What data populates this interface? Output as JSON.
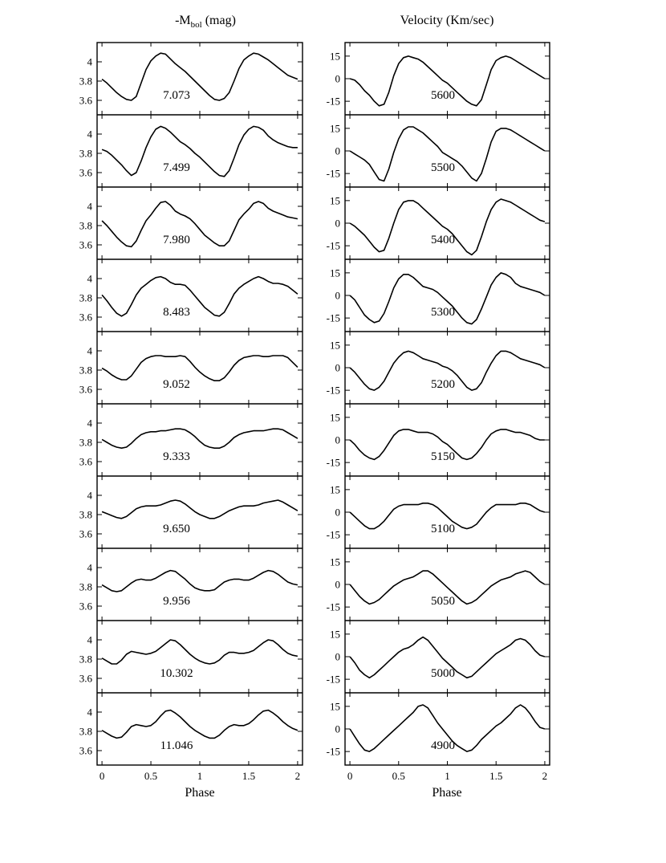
{
  "chart_data": {
    "type": "line",
    "layout": "two columns of ten stacked panels sharing the phase axis",
    "x_values": [
      0.0,
      0.05,
      0.1,
      0.15,
      0.2,
      0.25,
      0.3,
      0.35,
      0.4,
      0.45,
      0.5,
      0.55,
      0.6,
      0.65,
      0.7,
      0.75,
      0.8,
      0.85,
      0.9,
      0.95,
      1.0,
      1.05,
      1.1,
      1.15,
      1.2,
      1.25,
      1.3,
      1.35,
      1.4,
      1.45,
      1.5,
      1.55,
      1.6,
      1.65,
      1.7,
      1.75,
      1.8,
      1.85,
      1.9,
      1.95,
      2.0
    ],
    "columns": [
      {
        "title_main": "-M",
        "title_sub": "bol",
        "title_unit": " (mag)",
        "ylim": [
          3.45,
          4.2
        ],
        "yticks": [
          3.6,
          3.8,
          4.0
        ],
        "ytick_labels": [
          "3.6",
          "3.8",
          "4"
        ],
        "series": [
          {
            "label": "7.073",
            "values": [
              3.82,
              3.78,
              3.73,
              3.68,
              3.64,
              3.61,
              3.6,
              3.64,
              3.78,
              3.92,
              4.01,
              4.06,
              4.09,
              4.08,
              4.03,
              3.98,
              3.94,
              3.9,
              3.85,
              3.8,
              3.75,
              3.7,
              3.65,
              3.61,
              3.6,
              3.62,
              3.68,
              3.8,
              3.93,
              4.02,
              4.06,
              4.09,
              4.08,
              4.05,
              4.02,
              3.98,
              3.94,
              3.9,
              3.86,
              3.84,
              3.82
            ]
          },
          {
            "label": "7.499",
            "values": [
              3.84,
              3.82,
              3.78,
              3.73,
              3.68,
              3.62,
              3.57,
              3.6,
              3.72,
              3.86,
              3.97,
              4.05,
              4.08,
              4.06,
              4.02,
              3.97,
              3.92,
              3.89,
              3.85,
              3.8,
              3.76,
              3.71,
              3.66,
              3.61,
              3.57,
              3.56,
              3.62,
              3.75,
              3.89,
              3.99,
              4.05,
              4.08,
              4.07,
              4.04,
              3.98,
              3.94,
              3.91,
              3.89,
              3.87,
              3.86,
              3.86
            ]
          },
          {
            "label": "7.980",
            "values": [
              3.85,
              3.8,
              3.74,
              3.68,
              3.63,
              3.59,
              3.58,
              3.64,
              3.75,
              3.85,
              3.91,
              3.98,
              4.04,
              4.05,
              4.01,
              3.95,
              3.92,
              3.9,
              3.87,
              3.82,
              3.76,
              3.7,
              3.66,
              3.62,
              3.59,
              3.59,
              3.64,
              3.75,
              3.86,
              3.92,
              3.97,
              4.03,
              4.05,
              4.03,
              3.98,
              3.95,
              3.93,
              3.91,
              3.89,
              3.88,
              3.87
            ]
          },
          {
            "label": "8.483",
            "values": [
              3.83,
              3.77,
              3.7,
              3.64,
              3.61,
              3.64,
              3.73,
              3.83,
              3.9,
              3.94,
              3.98,
              4.01,
              4.02,
              4.0,
              3.96,
              3.94,
              3.94,
              3.93,
              3.88,
              3.82,
              3.76,
              3.7,
              3.66,
              3.62,
              3.61,
              3.65,
              3.74,
              3.84,
              3.9,
              3.94,
              3.97,
              4.0,
              4.02,
              4.0,
              3.97,
              3.95,
              3.95,
              3.94,
              3.92,
              3.88,
              3.84
            ]
          },
          {
            "label": "9.052",
            "values": [
              3.82,
              3.79,
              3.75,
              3.72,
              3.7,
              3.7,
              3.74,
              3.81,
              3.88,
              3.92,
              3.94,
              3.95,
              3.95,
              3.94,
              3.94,
              3.94,
              3.95,
              3.94,
              3.89,
              3.83,
              3.78,
              3.74,
              3.71,
              3.69,
              3.69,
              3.72,
              3.78,
              3.85,
              3.9,
              3.93,
              3.94,
              3.95,
              3.95,
              3.94,
              3.94,
              3.95,
              3.95,
              3.95,
              3.93,
              3.88,
              3.83
            ]
          },
          {
            "label": "9.333",
            "values": [
              3.83,
              3.8,
              3.77,
              3.75,
              3.74,
              3.75,
              3.79,
              3.84,
              3.88,
              3.9,
              3.91,
              3.91,
              3.92,
              3.92,
              3.93,
              3.94,
              3.94,
              3.93,
              3.9,
              3.86,
              3.81,
              3.77,
              3.75,
              3.74,
              3.74,
              3.76,
              3.8,
              3.85,
              3.88,
              3.9,
              3.91,
              3.92,
              3.92,
              3.92,
              3.93,
              3.94,
              3.94,
              3.93,
              3.9,
              3.87,
              3.84
            ]
          },
          {
            "label": "9.650",
            "values": [
              3.83,
              3.81,
              3.79,
              3.77,
              3.76,
              3.78,
              3.82,
              3.86,
              3.88,
              3.89,
              3.89,
              3.89,
              3.9,
              3.92,
              3.94,
              3.95,
              3.94,
              3.91,
              3.87,
              3.83,
              3.8,
              3.78,
              3.76,
              3.76,
              3.78,
              3.81,
              3.84,
              3.86,
              3.88,
              3.89,
              3.89,
              3.89,
              3.9,
              3.92,
              3.93,
              3.94,
              3.95,
              3.93,
              3.9,
              3.87,
              3.84
            ]
          },
          {
            "label": "9.956",
            "values": [
              3.82,
              3.79,
              3.76,
              3.75,
              3.76,
              3.8,
              3.84,
              3.87,
              3.88,
              3.87,
              3.87,
              3.89,
              3.92,
              3.95,
              3.97,
              3.96,
              3.92,
              3.88,
              3.83,
              3.79,
              3.77,
              3.76,
              3.76,
              3.77,
              3.81,
              3.85,
              3.87,
              3.88,
              3.88,
              3.87,
              3.87,
              3.89,
              3.92,
              3.95,
              3.97,
              3.96,
              3.93,
              3.89,
              3.85,
              3.83,
              3.82
            ]
          },
          {
            "label": "10.302",
            "values": [
              3.81,
              3.78,
              3.75,
              3.75,
              3.79,
              3.85,
              3.88,
              3.87,
              3.86,
              3.85,
              3.86,
              3.88,
              3.92,
              3.96,
              4.0,
              3.99,
              3.95,
              3.9,
              3.85,
              3.81,
              3.78,
              3.76,
              3.75,
              3.76,
              3.79,
              3.84,
              3.87,
              3.87,
              3.86,
              3.86,
              3.87,
              3.89,
              3.93,
              3.97,
              4.0,
              3.99,
              3.95,
              3.9,
              3.86,
              3.84,
              3.83
            ]
          },
          {
            "label": "11.046",
            "values": [
              3.81,
              3.78,
              3.75,
              3.73,
              3.74,
              3.79,
              3.85,
              3.87,
              3.86,
              3.85,
              3.86,
              3.9,
              3.96,
              4.01,
              4.02,
              3.99,
              3.95,
              3.9,
              3.85,
              3.81,
              3.78,
              3.75,
              3.73,
              3.73,
              3.76,
              3.81,
              3.85,
              3.87,
              3.86,
              3.86,
              3.88,
              3.92,
              3.97,
              4.01,
              4.02,
              3.99,
              3.95,
              3.9,
              3.86,
              3.83,
              3.81
            ]
          }
        ]
      },
      {
        "title_main": "Velocity (Km/sec)",
        "title_sub": "",
        "title_unit": "",
        "ylim": [
          -24,
          24
        ],
        "yticks": [
          -15,
          0,
          15
        ],
        "ytick_labels": [
          "-15",
          "0",
          "15"
        ],
        "series": [
          {
            "label": "5600",
            "values": [
              0,
              -1,
              -4,
              -8,
              -11,
              -15,
              -18,
              -17,
              -9,
              2,
              10,
              14,
              15,
              14,
              13,
              11,
              8,
              5,
              2,
              -1,
              -3,
              -6,
              -9,
              -12,
              -15,
              -17,
              -18,
              -14,
              -4,
              6,
              12,
              14,
              15,
              14,
              12,
              10,
              8,
              6,
              4,
              2,
              0
            ]
          },
          {
            "label": "5500",
            "values": [
              0,
              -2,
              -4,
              -6,
              -9,
              -14,
              -19,
              -20,
              -12,
              -1,
              8,
              14,
              16,
              16,
              14,
              12,
              9,
              6,
              3,
              -1,
              -3,
              -5,
              -7,
              -10,
              -14,
              -18,
              -20,
              -15,
              -5,
              6,
              13,
              15,
              15,
              14,
              12,
              10,
              8,
              6,
              4,
              2,
              0
            ]
          },
          {
            "label": "5400",
            "values": [
              0,
              -2,
              -5,
              -8,
              -12,
              -16,
              -19,
              -18,
              -10,
              0,
              9,
              14,
              15,
              15,
              13,
              10,
              7,
              4,
              1,
              -2,
              -4,
              -7,
              -11,
              -15,
              -19,
              -21,
              -18,
              -9,
              1,
              9,
              14,
              16,
              15,
              14,
              12,
              10,
              8,
              6,
              4,
              2,
              1
            ]
          },
          {
            "label": "5300",
            "values": [
              0,
              -3,
              -8,
              -13,
              -16,
              -18,
              -17,
              -12,
              -4,
              5,
              11,
              14,
              14,
              12,
              9,
              6,
              5,
              4,
              2,
              -1,
              -4,
              -7,
              -11,
              -15,
              -18,
              -19,
              -16,
              -9,
              -1,
              7,
              12,
              15,
              14,
              12,
              8,
              6,
              5,
              4,
              3,
              2,
              0
            ]
          },
          {
            "label": "5200",
            "values": [
              0,
              -3,
              -7,
              -11,
              -14,
              -15,
              -13,
              -9,
              -3,
              3,
              7,
              10,
              11,
              10,
              8,
              6,
              5,
              4,
              3,
              1,
              0,
              -2,
              -5,
              -9,
              -13,
              -15,
              -14,
              -10,
              -3,
              3,
              8,
              11,
              11,
              10,
              8,
              6,
              5,
              4,
              3,
              2,
              0
            ]
          },
          {
            "label": "5150",
            "values": [
              0,
              -3,
              -7,
              -10,
              -12,
              -13,
              -11,
              -7,
              -2,
              3,
              6,
              7,
              7,
              6,
              5,
              5,
              5,
              4,
              2,
              -1,
              -3,
              -6,
              -9,
              -12,
              -13,
              -12,
              -9,
              -5,
              0,
              4,
              6,
              7,
              7,
              6,
              5,
              5,
              4,
              3,
              1,
              0,
              0
            ]
          },
          {
            "label": "5100",
            "values": [
              0,
              -3,
              -6,
              -9,
              -11,
              -11,
              -9,
              -6,
              -2,
              2,
              4,
              5,
              5,
              5,
              5,
              6,
              6,
              5,
              3,
              0,
              -3,
              -6,
              -8,
              -10,
              -11,
              -10,
              -8,
              -4,
              0,
              3,
              5,
              5,
              5,
              5,
              5,
              6,
              6,
              5,
              3,
              1,
              0
            ]
          },
          {
            "label": "5050",
            "values": [
              0,
              -4,
              -8,
              -11,
              -13,
              -12,
              -10,
              -7,
              -4,
              -1,
              1,
              3,
              4,
              5,
              7,
              9,
              9,
              7,
              4,
              1,
              -2,
              -5,
              -8,
              -11,
              -13,
              -12,
              -10,
              -7,
              -4,
              -1,
              1,
              3,
              4,
              5,
              7,
              8,
              9,
              8,
              5,
              2,
              0
            ]
          },
          {
            "label": "5000",
            "values": [
              0,
              -4,
              -9,
              -12,
              -14,
              -12,
              -9,
              -6,
              -3,
              0,
              3,
              5,
              6,
              8,
              11,
              13,
              11,
              7,
              3,
              -1,
              -4,
              -7,
              -10,
              -12,
              -14,
              -13,
              -10,
              -7,
              -4,
              -1,
              2,
              4,
              6,
              8,
              11,
              12,
              11,
              8,
              4,
              1,
              0
            ]
          },
          {
            "label": "4900",
            "values": [
              0,
              -5,
              -10,
              -14,
              -15,
              -13,
              -10,
              -7,
              -4,
              -1,
              2,
              5,
              8,
              11,
              15,
              16,
              14,
              9,
              4,
              0,
              -4,
              -8,
              -11,
              -13,
              -15,
              -14,
              -11,
              -7,
              -4,
              -1,
              2,
              4,
              7,
              10,
              14,
              16,
              14,
              10,
              5,
              1,
              0
            ]
          }
        ]
      }
    ],
    "xlabel": "Phase",
    "xlim": [
      -0.05,
      2.05
    ],
    "xticks": [
      0,
      0.5,
      1,
      1.5,
      2
    ],
    "xtick_labels": [
      "0",
      "0.5",
      "1",
      "1.5",
      "2"
    ]
  }
}
